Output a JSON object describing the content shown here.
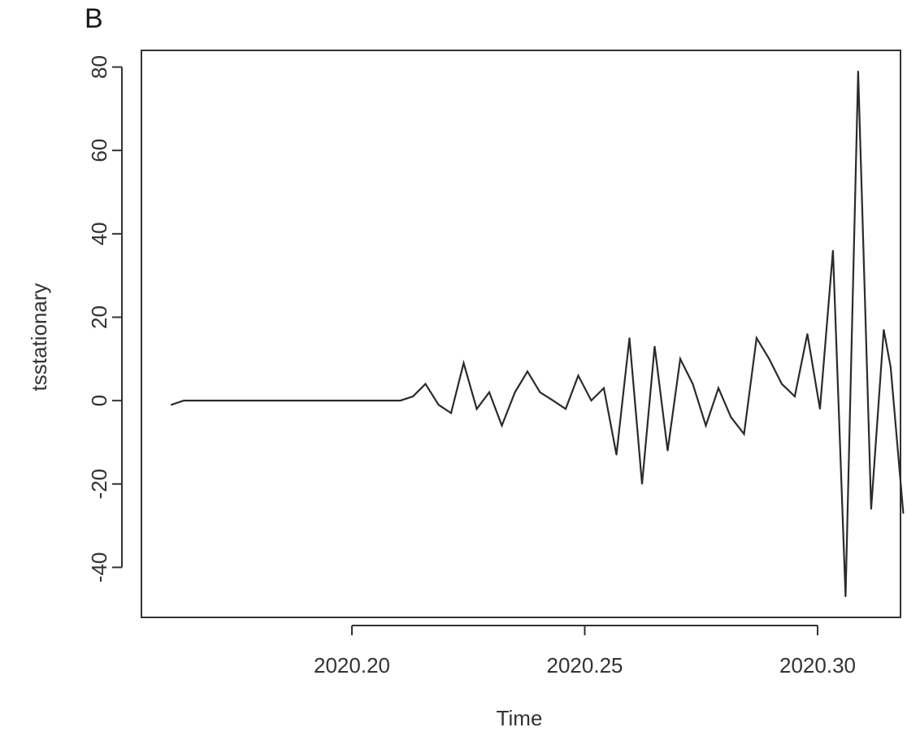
{
  "panel_label": "B",
  "chart_data": {
    "type": "line",
    "xlabel": "Time",
    "ylabel": "tsstationary",
    "xlim": [
      2020.1548,
      2020.3178
    ],
    "ylim": [
      -52,
      84
    ],
    "x_ticks": [
      2020.2,
      2020.25,
      2020.3
    ],
    "x_tick_labels": [
      "2020.20",
      "2020.25",
      "2020.30"
    ],
    "y_ticks": [
      -40,
      -20,
      0,
      20,
      40,
      60,
      80
    ],
    "y_tick_labels": [
      "-40",
      "-20",
      "0",
      "20",
      "40",
      "60",
      "80"
    ],
    "grid": false,
    "line_color": "#2b2b2b",
    "series": [
      {
        "x": [
          2020.1612,
          2020.1639,
          2020.1667,
          2020.1694,
          2020.1721,
          2020.1749,
          2020.1776,
          2020.1803,
          2020.1831,
          2020.1858,
          2020.1885,
          2020.1913,
          2020.194,
          2020.1967,
          2020.1995,
          2020.2022,
          2020.2049,
          2020.2077,
          2020.2104,
          2020.2131,
          2020.2158,
          2020.2186,
          2020.2213,
          2020.224,
          2020.2268,
          2020.2295,
          2020.2322,
          2020.235,
          2020.2377,
          2020.2404,
          2020.2432,
          2020.2459,
          2020.2486,
          2020.2514,
          2020.2541,
          2020.2568,
          2020.2596,
          2020.2623,
          2020.265,
          2020.2678,
          2020.2705,
          2020.2732,
          2020.276,
          2020.2787,
          2020.2814,
          2020.2842,
          2020.2869,
          2020.2896,
          2020.2923,
          2020.2951,
          2020.2978,
          2020.3005,
          2020.3033,
          2020.306,
          2020.3087,
          2020.3115,
          2020.3142
        ],
        "y": [
          -1,
          0,
          0,
          0,
          0,
          0,
          0,
          0,
          0,
          0,
          0,
          0,
          0,
          0,
          0,
          0,
          0,
          0,
          0,
          1,
          4,
          -1,
          -3,
          9,
          -2,
          2,
          -6,
          2,
          7,
          2,
          0,
          -2,
          6,
          0,
          3,
          -13,
          15,
          -20,
          13,
          -12,
          10,
          4,
          -6,
          3,
          -4,
          -8,
          15,
          10,
          4,
          1,
          16,
          -2,
          36,
          -47,
          79,
          -26,
          17
        ]
      }
    ],
    "tail_y": [
      8,
      -27
    ]
  }
}
